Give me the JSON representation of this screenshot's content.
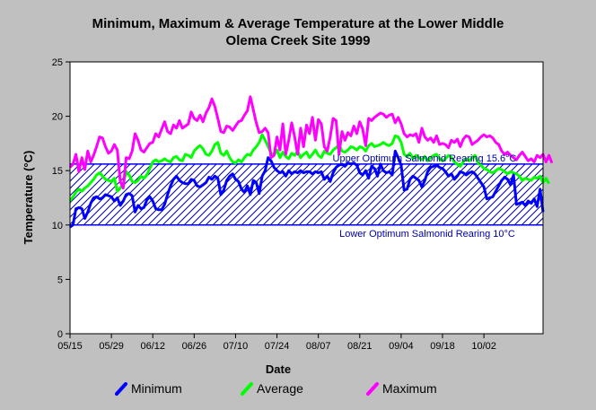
{
  "chart_data": {
    "type": "line",
    "title_line1": "Minimum, Maximum & Average Temperature at the Lower Middle",
    "title_line2": "Olema Creek Site 1999",
    "xlabel": "Date",
    "ylabel": "Temperature (°C)",
    "ylim": [
      0,
      25
    ],
    "yticks": [
      0,
      5,
      10,
      15,
      20,
      25
    ],
    "x_start": "05/15",
    "x_end": "10/25",
    "xticks": [
      "05/15",
      "05/29",
      "06/12",
      "06/26",
      "07/10",
      "07/24",
      "08/07",
      "08/21",
      "09/04",
      "09/18",
      "10/02"
    ],
    "grid": false,
    "legend_position": "bottom",
    "bands": [
      {
        "name": "Upper Optimum Salmonid Rearing 15.6°C",
        "value": 15.6
      },
      {
        "name": "Lower Optimum Salmonid Rearing 10°C",
        "value": 10
      }
    ],
    "series": [
      {
        "name": "Minimum",
        "color": "#0000ff",
        "values": [
          9.8,
          10,
          11.5,
          11.6,
          11.5,
          10.6,
          11.2,
          12,
          12.5,
          12.6,
          12.4,
          12.5,
          12.8,
          12.7,
          12.6,
          12.2,
          12.5,
          11.8,
          12.2,
          12.8,
          12.9,
          12.7,
          11.2,
          11.8,
          11.5,
          11.6,
          12.3,
          12.6,
          12.2,
          11.5,
          11.4,
          11.4,
          11.9,
          12.8,
          13.6,
          14.2,
          14.5,
          14.1,
          13.9,
          13.8,
          13.8,
          14.2,
          14.1,
          13.6,
          13.5,
          13.7,
          13.9,
          14.4,
          14.2,
          14.5,
          14.3,
          12.8,
          13.2,
          14.1,
          14.5,
          14.7,
          14.2,
          14,
          13.3,
          13,
          13.6,
          12.8,
          14.1,
          13.9,
          12.9,
          14.5,
          15,
          16.2,
          15.9,
          15.3,
          15,
          14.8,
          14.9,
          14.5,
          15,
          14.7,
          14.9,
          14.8,
          15,
          14.8,
          14.9,
          14.9,
          14.7,
          14.9,
          14.8,
          14.9,
          14.2,
          14.5,
          14,
          14.8,
          15.3,
          15.5,
          15.6,
          15.4,
          15.7,
          15.6,
          15.7,
          15.5,
          14.8,
          14.6,
          15,
          14.3,
          15.4,
          15.2,
          14.5,
          15.6,
          15,
          14.8,
          14.9,
          14.6,
          16.8,
          16.2,
          15.5,
          13.2,
          13.3,
          14.2,
          14.5,
          14.3,
          14.1,
          13.5,
          14.1,
          14.9,
          15.3,
          15.4,
          15.5,
          15.3,
          15.2,
          14.9,
          14.5,
          14.7,
          14.2,
          14.5,
          14.9,
          14.8,
          14.6,
          14.8,
          14.9,
          14.7,
          14.3,
          13.9,
          13.5,
          12.4,
          12.5,
          12.6,
          13.1,
          13.6,
          14.1,
          14.4,
          14.2,
          13.7,
          14.6,
          11.9,
          12,
          12.1,
          11.8,
          12.2,
          12,
          12.4,
          11.7,
          13.3,
          11.2
        ]
      },
      {
        "name": "Average",
        "color": "#00ff00",
        "values": [
          12.2,
          12.6,
          13,
          13.3,
          13.1,
          13.4,
          13.6,
          13.9,
          14.2,
          14.6,
          14.8,
          14.5,
          14.2,
          14.1,
          14,
          14.3,
          13.1,
          13.4,
          13.8,
          14.9,
          14.6,
          14,
          13.9,
          14.1,
          14.5,
          14.3,
          14.6,
          15.2,
          15.8,
          16,
          15.8,
          15.9,
          16.1,
          15.9,
          15.8,
          16.2,
          16.3,
          16,
          15.9,
          16.5,
          16.4,
          16.2,
          16.8,
          17.1,
          17.3,
          17,
          16.5,
          16.4,
          16.8,
          17.4,
          17.6,
          16.6,
          16.4,
          16.8,
          16.2,
          15.8,
          15.7,
          16,
          15.8,
          16.2,
          16.5,
          16.4,
          16.9,
          17.2,
          17.6,
          18.3,
          17.8,
          17.2,
          16.6,
          16.4,
          16.9,
          16.2,
          16.7,
          16.3,
          16.1,
          16.6,
          16.4,
          16.8,
          16.2,
          16.5,
          16.7,
          16.2,
          16.5,
          16.9,
          16.4,
          16.2,
          16.8,
          16.6,
          16.5,
          16.9,
          17.1,
          17.4,
          16.8,
          16.7,
          16.9,
          17.2,
          17.1,
          16.9,
          17.2,
          17.1,
          16.8,
          17.3,
          17.5,
          17.2,
          17.3,
          17.4,
          17.6,
          17.4,
          17.3,
          17.5,
          18.2,
          18.1,
          17.6,
          16.5,
          16.3,
          16.6,
          16.1,
          16.4,
          16.2,
          16,
          16.3,
          15.9,
          16.2,
          16.4,
          16.5,
          16.1,
          15.9,
          16.1,
          16.4,
          16.2,
          15.8,
          15.6,
          15.4,
          15.8,
          16.1,
          15.9,
          16.2,
          16.4,
          15.7,
          15.5,
          15.2,
          15.1,
          14.9,
          14.8,
          15,
          15.2,
          15.1,
          14.9,
          14.7,
          14.9,
          14.8,
          14.7,
          14.5,
          14.1,
          14.3,
          14.2,
          14.1,
          14.4,
          14.3,
          14.5,
          13.9,
          14.3,
          13.8
        ]
      },
      {
        "name": "Maximum",
        "color": "#ff00ff",
        "values": [
          15.3,
          15.6,
          16.5,
          14.9,
          16.2,
          15.1,
          16.8,
          15.8,
          16.4,
          17.2,
          18.1,
          18,
          17.2,
          16.6,
          16.8,
          17.4,
          16.9,
          14,
          13.4,
          16.2,
          16.1,
          16.8,
          18.4,
          17.8,
          16.9,
          16.7,
          17.1,
          17.5,
          17.6,
          18.4,
          18.1,
          18.8,
          19.5,
          18.6,
          18.4,
          19.2,
          18.9,
          19.6,
          18.9,
          19.1,
          19.3,
          20.4,
          19.8,
          19.6,
          20.1,
          19.5,
          20.3,
          20.8,
          21.6,
          20.9,
          19.8,
          18.6,
          18.5,
          19.1,
          19,
          18.7,
          19.1,
          19.5,
          19.6,
          20.1,
          20.5,
          21.8,
          20.6,
          19.4,
          18.5,
          18.6,
          18.9,
          18.5,
          16.2,
          16.4,
          18.1,
          16.9,
          19.3,
          16.5,
          17.8,
          19.4,
          18.1,
          16.5,
          18.9,
          17.2,
          19.2,
          18.4,
          19.9,
          17.8,
          19.7,
          19.3,
          17.2,
          16.8,
          18.1,
          19.8,
          19.6,
          16.5,
          18.6,
          17.8,
          18.5,
          18.2,
          19.1,
          18.4,
          19.5,
          18.8,
          17.3,
          19.8,
          19.6,
          19.9,
          20.1,
          20.3,
          20.2,
          19.9,
          20.1,
          20.2,
          19.4,
          19.9,
          19.3,
          18.4,
          18.1,
          18.3,
          18.2,
          18.4,
          17.6,
          18.9,
          18.1,
          17.8,
          18,
          17.6,
          18.2,
          17.4,
          17.5,
          17.4,
          17.1,
          17.8,
          17.6,
          17.9,
          17.2,
          17.9,
          18.2,
          18.1,
          17.4,
          17.6,
          17.8,
          18.1,
          18.3,
          18.1,
          18.2,
          18,
          17.6,
          17.4,
          16.8,
          16.5,
          16.7,
          16.4,
          16.2,
          16,
          16.4,
          16.7,
          16.3,
          15.9,
          16.1,
          15.8,
          16.4,
          16.2,
          16.5,
          15.8,
          16.4,
          15.7
        ]
      }
    ]
  }
}
